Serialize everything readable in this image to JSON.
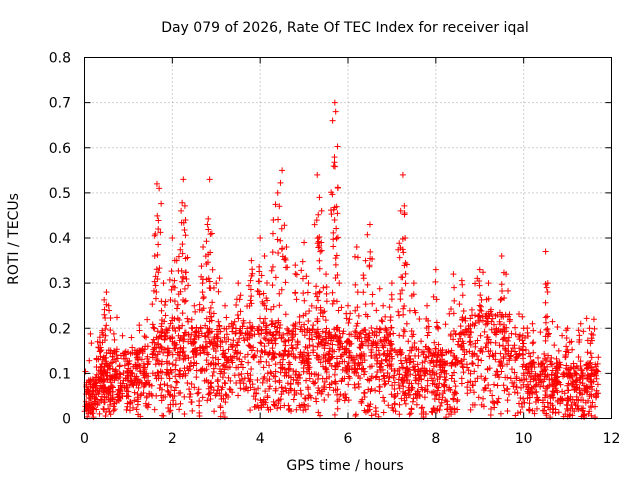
{
  "chart_data": {
    "type": "scatter",
    "title": "Day 079 of 2026, Rate Of TEC Index for receiver iqal",
    "xlabel": "GPS time / hours",
    "ylabel": "ROTI / TECUs",
    "xlim": [
      0,
      12
    ],
    "ylim": [
      0,
      0.8
    ],
    "x_ticks": [
      "0",
      "2",
      "4",
      "6",
      "8",
      "10",
      "12"
    ],
    "y_ticks": [
      "0",
      "0.1",
      "0.2",
      "0.3",
      "0.4",
      "0.5",
      "0.6",
      "0.7",
      "0.8"
    ],
    "grid": true,
    "marker": "+",
    "color": "#ff0000",
    "series": [
      {
        "name": "ROTI",
        "points": [
          [
            0.1,
            0.03
          ],
          [
            0.2,
            0.06
          ],
          [
            0.3,
            0.17
          ],
          [
            0.35,
            0.18
          ],
          [
            0.4,
            0.19
          ],
          [
            0.45,
            0.23
          ],
          [
            0.5,
            0.28
          ],
          [
            0.55,
            0.25
          ],
          [
            0.6,
            0.08
          ],
          [
            0.8,
            0.1
          ],
          [
            1.0,
            0.12
          ],
          [
            1.2,
            0.15
          ],
          [
            1.4,
            0.18
          ],
          [
            1.6,
            0.36
          ],
          [
            1.65,
            0.52
          ],
          [
            1.7,
            0.51
          ],
          [
            1.8,
            0.3
          ],
          [
            2.0,
            0.4
          ],
          [
            2.1,
            0.35
          ],
          [
            2.2,
            0.46
          ],
          [
            2.25,
            0.53
          ],
          [
            2.3,
            0.44
          ],
          [
            2.5,
            0.25
          ],
          [
            2.7,
            0.38
          ],
          [
            2.8,
            0.43
          ],
          [
            2.85,
            0.53
          ],
          [
            2.9,
            0.41
          ],
          [
            3.0,
            0.3
          ],
          [
            3.2,
            0.25
          ],
          [
            3.5,
            0.3
          ],
          [
            3.8,
            0.35
          ],
          [
            4.0,
            0.4
          ],
          [
            4.1,
            0.36
          ],
          [
            4.3,
            0.44
          ],
          [
            4.4,
            0.5
          ],
          [
            4.5,
            0.55
          ],
          [
            4.6,
            0.38
          ],
          [
            4.8,
            0.34
          ],
          [
            5.0,
            0.39
          ],
          [
            5.1,
            0.3
          ],
          [
            5.3,
            0.54
          ],
          [
            5.35,
            0.49
          ],
          [
            5.4,
            0.46
          ],
          [
            5.5,
            0.32
          ],
          [
            5.65,
            0.66
          ],
          [
            5.7,
            0.7
          ],
          [
            5.72,
            0.68
          ],
          [
            5.8,
            0.3
          ],
          [
            6.0,
            0.25
          ],
          [
            6.2,
            0.38
          ],
          [
            6.4,
            0.35
          ],
          [
            6.5,
            0.43
          ],
          [
            6.8,
            0.25
          ],
          [
            7.0,
            0.3
          ],
          [
            7.2,
            0.46
          ],
          [
            7.25,
            0.54
          ],
          [
            7.3,
            0.4
          ],
          [
            7.5,
            0.3
          ],
          [
            7.8,
            0.25
          ],
          [
            8.0,
            0.33
          ],
          [
            8.4,
            0.32
          ],
          [
            8.6,
            0.22
          ],
          [
            9.0,
            0.33
          ],
          [
            9.2,
            0.3
          ],
          [
            9.5,
            0.36
          ],
          [
            9.6,
            0.32
          ],
          [
            10.0,
            0.2
          ],
          [
            10.2,
            0.21
          ],
          [
            10.5,
            0.37
          ],
          [
            10.55,
            0.3
          ],
          [
            10.8,
            0.15
          ],
          [
            11.0,
            0.2
          ],
          [
            11.3,
            0.21
          ],
          [
            11.5,
            0.2
          ],
          [
            11.6,
            0.22
          ]
        ]
      }
    ],
    "dense_band": {
      "description": "baseline cloud of points",
      "x_range": [
        0,
        11.7
      ],
      "typical_range": [
        0.0,
        0.2
      ]
    }
  }
}
